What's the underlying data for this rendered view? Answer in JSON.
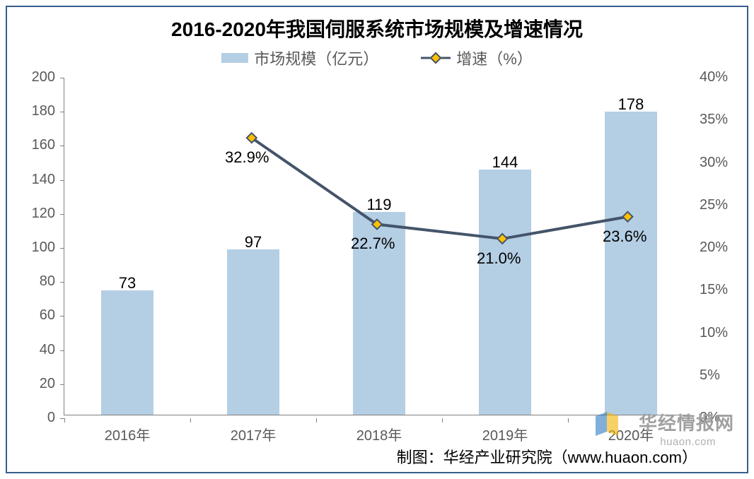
{
  "chart": {
    "type": "bar+line",
    "title": "2016-2020年我国伺服系统市场规模及增速情况",
    "title_fontsize": 28,
    "legend": {
      "fontsize": 22,
      "series1_label": "市场规模（亿元）",
      "series2_label": "增速（%）"
    },
    "categories": [
      "2016年",
      "2017年",
      "2018年",
      "2019年",
      "2020年"
    ],
    "category_fontsize": 20,
    "bars": {
      "values": [
        73,
        97,
        119,
        144,
        178
      ],
      "labels": [
        "73",
        "97",
        "119",
        "144",
        "178"
      ],
      "color": "#b4cee4",
      "width_frac": 0.42,
      "label_fontsize": 22
    },
    "line": {
      "values": [
        null,
        32.9,
        22.7,
        21.0,
        23.6
      ],
      "labels": [
        null,
        "32.9%",
        "22.7%",
        "21.0%",
        "23.6%"
      ],
      "stroke": "#44546a",
      "stroke_width": 4,
      "marker_fill": "#ffc000",
      "marker_stroke": "#44546a",
      "marker_size": 14,
      "label_fontsize": 22
    },
    "y_left": {
      "min": 0,
      "max": 200,
      "step": 20,
      "fontsize": 20
    },
    "y_right": {
      "min": 0,
      "max": 40,
      "step": 5,
      "fontsize": 20,
      "suffix": "%"
    },
    "plot_bg": "#ffffff",
    "axis_color": "#808080"
  },
  "credit": {
    "text": "制图：华经产业研究院（www.huaon.com）",
    "fontsize": 22
  },
  "watermark": {
    "text": "华经情报网",
    "url": "huaon.com",
    "logo_color1": "#2d7cc1",
    "logo_color2": "#f5b301"
  }
}
